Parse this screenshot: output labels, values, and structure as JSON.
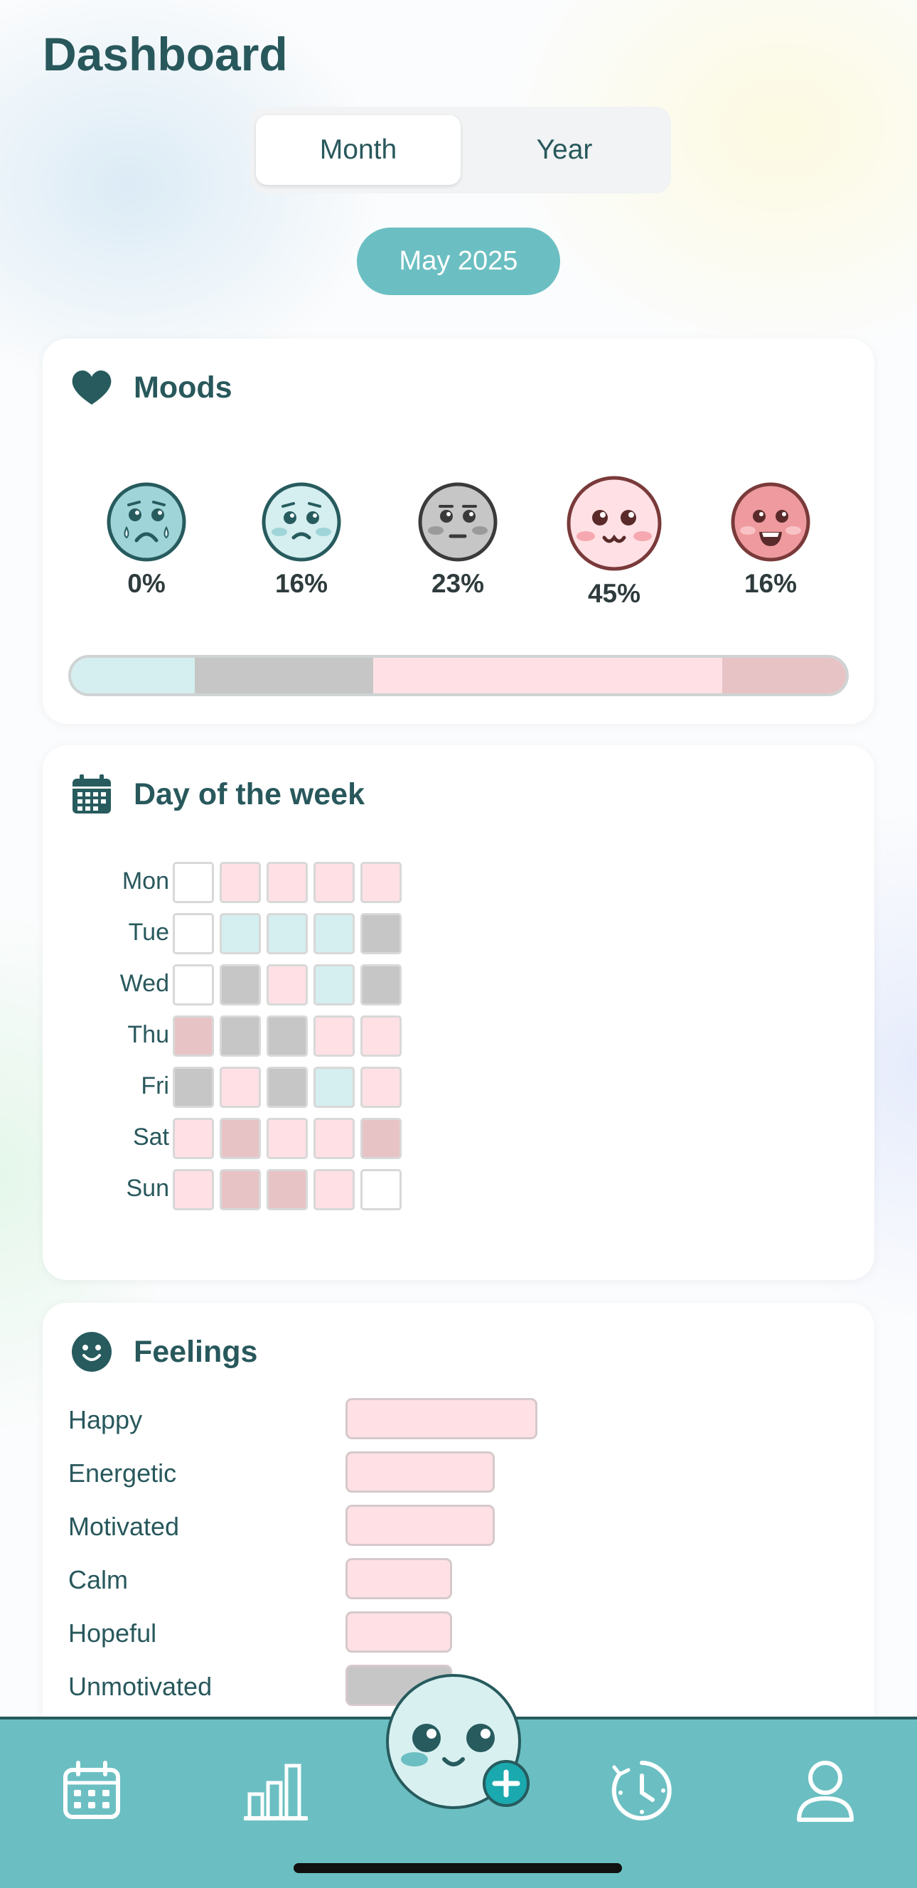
{
  "header": {
    "title": "Dashboard"
  },
  "period_tabs": [
    {
      "label": "Month",
      "selected": true
    },
    {
      "label": "Year",
      "selected": false
    }
  ],
  "period": {
    "label": "May 2025"
  },
  "moods_card": {
    "title": "Moods",
    "moods": [
      {
        "icon": "crying-face-icon",
        "percent": "0%",
        "value": 0,
        "color": "#d5eef0"
      },
      {
        "icon": "sad-face-icon",
        "percent": "16%",
        "value": 16,
        "color": "#d5eef0"
      },
      {
        "icon": "neutral-face-icon",
        "percent": "23%",
        "value": 23,
        "color": "#c6c6c6"
      },
      {
        "icon": "happy-face-icon",
        "percent": "45%",
        "value": 45,
        "color": "#ffe1e5"
      },
      {
        "icon": "laughing-face-icon",
        "percent": "16%",
        "value": 16,
        "color": "#e8c3c6"
      }
    ]
  },
  "week_card": {
    "title": "Day of the week",
    "days": [
      {
        "label": "Mon",
        "cells": [
          "empty",
          "happy",
          "happy",
          "happy",
          "happy"
        ]
      },
      {
        "label": "Tue",
        "cells": [
          "empty",
          "sad",
          "sad",
          "sad",
          "neutral"
        ]
      },
      {
        "label": "Wed",
        "cells": [
          "empty",
          "neutral",
          "happy",
          "sad",
          "neutral"
        ]
      },
      {
        "label": "Thu",
        "cells": [
          "great",
          "neutral",
          "neutral",
          "happy",
          "happy"
        ]
      },
      {
        "label": "Fri",
        "cells": [
          "neutral",
          "happy",
          "neutral",
          "sad",
          "happy"
        ]
      },
      {
        "label": "Sat",
        "cells": [
          "happy",
          "great",
          "happy",
          "happy",
          "great"
        ]
      },
      {
        "label": "Sun",
        "cells": [
          "happy",
          "great",
          "great",
          "happy",
          "empty"
        ]
      }
    ],
    "cell_colors": {
      "empty": "#ffffff",
      "happy": "#ffe1e5",
      "sad": "#d5eef0",
      "neutral": "#c6c6c6",
      "great": "#e8c3c6"
    }
  },
  "feelings_card": {
    "title": "Feelings",
    "items": [
      {
        "label": "Happy",
        "count": 9,
        "mood": "happy"
      },
      {
        "label": "Energetic",
        "count": 7,
        "mood": "happy"
      },
      {
        "label": "Motivated",
        "count": 7,
        "mood": "happy"
      },
      {
        "label": "Calm",
        "count": 5,
        "mood": "happy"
      },
      {
        "label": "Hopeful",
        "count": 5,
        "mood": "happy"
      },
      {
        "label": "Unmotivated",
        "count": 5,
        "mood": "neutral"
      }
    ]
  },
  "tab_bar": {
    "items": [
      {
        "icon": "calendar-icon",
        "name": "calendar"
      },
      {
        "icon": "bar-chart-icon",
        "name": "statistics"
      },
      {
        "icon": "add-mood-icon",
        "name": "add-entry"
      },
      {
        "icon": "history-clock-icon",
        "name": "history"
      },
      {
        "icon": "profile-icon",
        "name": "profile"
      }
    ]
  },
  "colors": {
    "accent": "#6bbfc2",
    "text": "#28585c",
    "outline": "#275b5e"
  }
}
